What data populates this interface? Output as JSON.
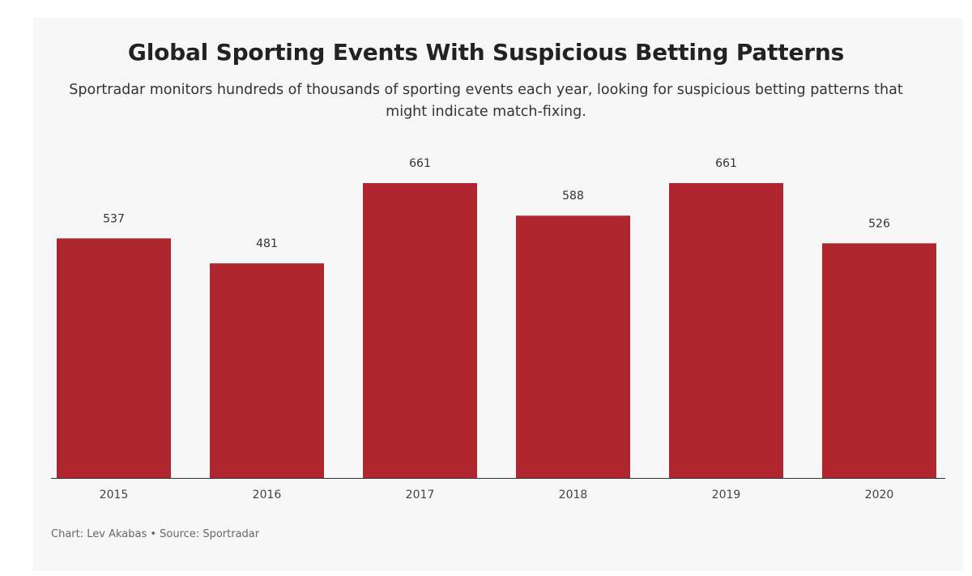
{
  "chart_data": {
    "type": "bar",
    "title": "Global Sporting Events With Suspicious Betting Patterns",
    "subtitle": "Sportradar monitors hundreds of thousands of sporting events each year, looking for suspicious betting patterns that might indicate match-fixing.",
    "categories": [
      "2015",
      "2016",
      "2017",
      "2018",
      "2019",
      "2020"
    ],
    "values": [
      537,
      481,
      661,
      588,
      661,
      526
    ],
    "data_labels": [
      "537",
      "481",
      "661",
      "588",
      "661",
      "526"
    ],
    "ylim": [
      0,
      661
    ],
    "grid": false,
    "bar_color": "#b0262e",
    "footer": "Chart: Lev Akabas • Source: Sportradar"
  }
}
